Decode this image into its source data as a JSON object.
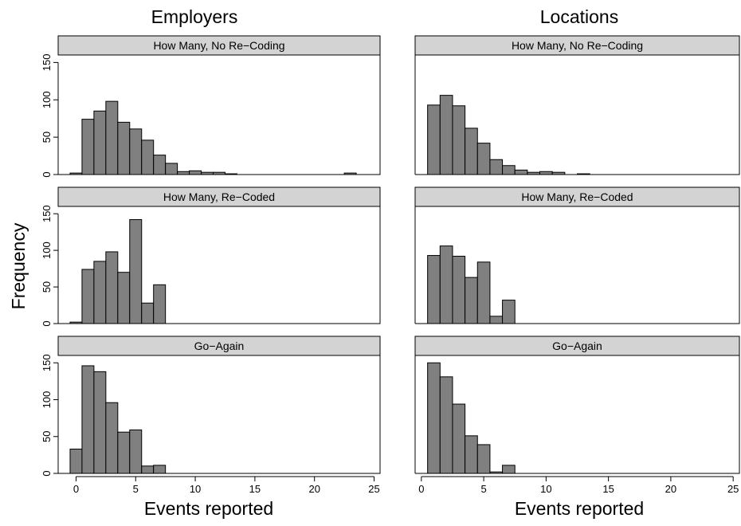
{
  "figure": {
    "ylabel": "Frequency",
    "columns": [
      {
        "title": "Employers",
        "xlabel": "Events reported"
      },
      {
        "title": "Locations",
        "xlabel": "Events reported"
      }
    ]
  },
  "chart_data": [
    {
      "type": "bar",
      "column": "Employers",
      "panel": "How Many, No Re−Coding",
      "x": [
        0,
        1,
        2,
        3,
        4,
        5,
        6,
        7,
        8,
        9,
        10,
        11,
        12,
        13,
        23
      ],
      "values": [
        2,
        74,
        85,
        98,
        70,
        61,
        46,
        26,
        15,
        4,
        5,
        3,
        3,
        1,
        2
      ],
      "xlim": [
        -1.5,
        25.5
      ],
      "ylim": [
        0,
        160
      ],
      "xticks": [
        0,
        5,
        10,
        15,
        20,
        25
      ],
      "yticks": [
        0,
        50,
        100,
        150
      ]
    },
    {
      "type": "bar",
      "column": "Employers",
      "panel": "How Many, Re−Coded",
      "x": [
        0,
        1,
        2,
        3,
        4,
        5,
        6,
        7
      ],
      "values": [
        2,
        74,
        85,
        98,
        70,
        142,
        28,
        53
      ],
      "xlim": [
        -1.5,
        25.5
      ],
      "ylim": [
        0,
        160
      ],
      "xticks": [
        0,
        5,
        10,
        15,
        20,
        25
      ],
      "yticks": [
        0,
        50,
        100,
        150
      ]
    },
    {
      "type": "bar",
      "column": "Employers",
      "panel": "Go−Again",
      "x": [
        0,
        1,
        2,
        3,
        4,
        5,
        6,
        7
      ],
      "values": [
        33,
        146,
        138,
        96,
        56,
        59,
        10,
        11
      ],
      "xlim": [
        -1.5,
        25.5
      ],
      "ylim": [
        0,
        160
      ],
      "xticks": [
        0,
        5,
        10,
        15,
        20,
        25
      ],
      "yticks": [
        0,
        50,
        100,
        150
      ]
    },
    {
      "type": "bar",
      "column": "Locations",
      "panel": "How Many, No Re−Coding",
      "x": [
        1,
        2,
        3,
        4,
        5,
        6,
        7,
        8,
        9,
        10,
        11,
        13
      ],
      "values": [
        93,
        106,
        92,
        62,
        42,
        20,
        12,
        6,
        3,
        4,
        3,
        1
      ],
      "xlim": [
        -0.5,
        25.5
      ],
      "ylim": [
        0,
        160
      ],
      "xticks": [
        0,
        5,
        10,
        15,
        20,
        25
      ],
      "yticks": [
        0,
        50,
        100,
        150
      ]
    },
    {
      "type": "bar",
      "column": "Locations",
      "panel": "How Many, Re−Coded",
      "x": [
        1,
        2,
        3,
        4,
        5,
        6,
        7
      ],
      "values": [
        93,
        106,
        92,
        63,
        84,
        10,
        32
      ],
      "xlim": [
        -0.5,
        25.5
      ],
      "ylim": [
        0,
        160
      ],
      "xticks": [
        0,
        5,
        10,
        15,
        20,
        25
      ],
      "yticks": [
        0,
        50,
        100,
        150
      ]
    },
    {
      "type": "bar",
      "column": "Locations",
      "panel": "Go−Again",
      "x": [
        1,
        2,
        3,
        4,
        5,
        6,
        7
      ],
      "values": [
        150,
        131,
        94,
        51,
        39,
        2,
        11
      ],
      "xlim": [
        -0.5,
        25.5
      ],
      "ylim": [
        0,
        160
      ],
      "xticks": [
        0,
        5,
        10,
        15,
        20,
        25
      ],
      "yticks": [
        0,
        50,
        100,
        150
      ]
    }
  ],
  "style": {
    "bar_fill": "#808080",
    "bar_stroke": "#000000",
    "strip_fill": "#d3d3d3"
  }
}
